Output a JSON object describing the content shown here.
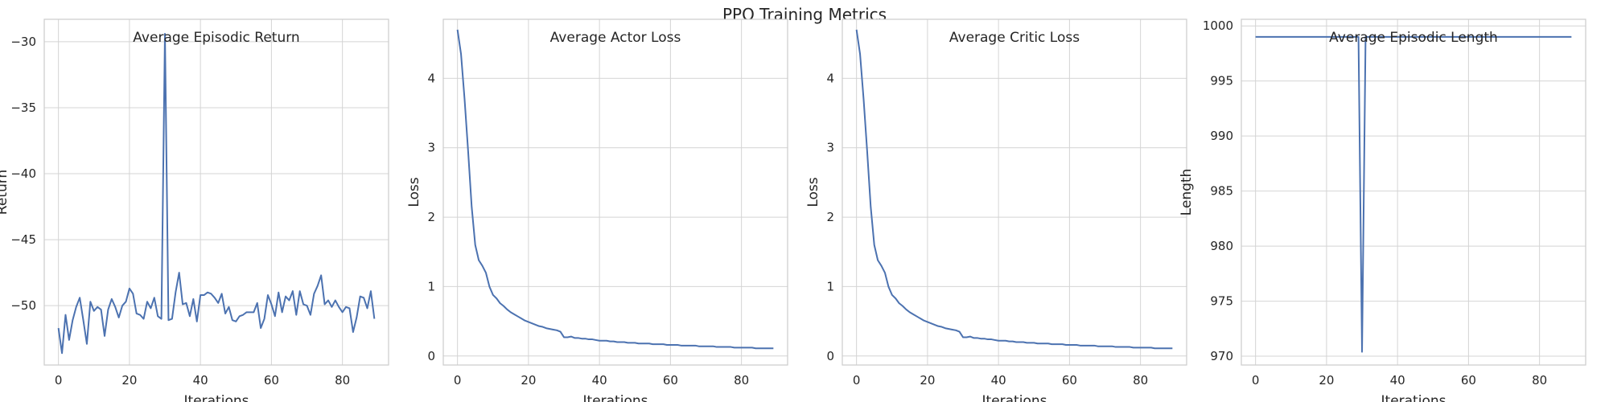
{
  "figure_title": "PPO Training Metrics",
  "chart_data": [
    {
      "type": "line",
      "title": "Average Episodic Return",
      "xlabel": "Iterations",
      "ylabel": "Return",
      "xlim": [
        -4,
        93
      ],
      "ylim": [
        -54.5,
        -28.3
      ],
      "xticks": [
        0,
        20,
        40,
        60,
        80
      ],
      "yticks": [
        -50,
        -45,
        -40,
        -35,
        -30
      ],
      "grid": true,
      "color": "#4c72b0",
      "x": [
        0,
        1,
        2,
        3,
        4,
        5,
        6,
        7,
        8,
        9,
        10,
        11,
        12,
        13,
        14,
        15,
        16,
        17,
        18,
        19,
        20,
        21,
        22,
        23,
        24,
        25,
        26,
        27,
        28,
        29,
        30,
        31,
        32,
        33,
        34,
        35,
        36,
        37,
        38,
        39,
        40,
        41,
        42,
        43,
        44,
        45,
        46,
        47,
        48,
        49,
        50,
        51,
        52,
        53,
        54,
        55,
        56,
        57,
        58,
        59,
        60,
        61,
        62,
        63,
        64,
        65,
        66,
        67,
        68,
        69,
        70,
        71,
        72,
        73,
        74,
        75,
        76,
        77,
        78,
        79,
        80,
        81,
        82,
        83,
        84,
        85,
        86,
        87,
        88,
        89
      ],
      "y": [
        -51.7,
        -53.6,
        -50.7,
        -52.6,
        -51.1,
        -50.1,
        -49.4,
        -51.1,
        -52.9,
        -49.7,
        -50.4,
        -50.1,
        -50.3,
        -52.3,
        -50.3,
        -49.5,
        -50.1,
        -50.9,
        -50.0,
        -49.7,
        -48.7,
        -49.1,
        -50.6,
        -50.7,
        -51.0,
        -49.7,
        -50.2,
        -49.4,
        -50.8,
        -51.0,
        -29.4,
        -51.1,
        -51.0,
        -49.0,
        -47.5,
        -49.9,
        -49.8,
        -50.8,
        -49.5,
        -51.2,
        -49.2,
        -49.2,
        -49.0,
        -49.1,
        -49.4,
        -49.8,
        -49.1,
        -50.6,
        -50.1,
        -51.1,
        -51.2,
        -50.8,
        -50.7,
        -50.5,
        -50.5,
        -50.5,
        -49.8,
        -51.7,
        -51.0,
        -49.2,
        -49.9,
        -50.8,
        -49.0,
        -50.5,
        -49.3,
        -49.6,
        -48.9,
        -50.7,
        -48.9,
        -49.9,
        -50.0,
        -50.7,
        -49.1,
        -48.5,
        -47.7,
        -49.9,
        -49.6,
        -50.1,
        -49.6,
        -50.1,
        -50.5,
        -50.1,
        -50.2,
        -52.0,
        -50.9,
        -49.3,
        -49.4,
        -50.2,
        -48.9,
        -51.0
      ]
    },
    {
      "type": "line",
      "title": "Average Actor Loss",
      "xlabel": "Iterations",
      "ylabel": "Loss",
      "xlim": [
        -4,
        93
      ],
      "ylim": [
        -0.13,
        4.85
      ],
      "xticks": [
        0,
        20,
        40,
        60,
        80
      ],
      "yticks": [
        0,
        1,
        2,
        3,
        4
      ],
      "grid": true,
      "color": "#4c72b0",
      "x": [
        0,
        1,
        2,
        3,
        4,
        5,
        6,
        7,
        8,
        9,
        10,
        11,
        12,
        13,
        14,
        15,
        16,
        17,
        18,
        19,
        20,
        21,
        22,
        23,
        24,
        25,
        26,
        27,
        28,
        29,
        30,
        31,
        32,
        33,
        34,
        35,
        36,
        37,
        38,
        39,
        40,
        41,
        42,
        43,
        44,
        45,
        46,
        47,
        48,
        49,
        50,
        51,
        52,
        53,
        54,
        55,
        56,
        57,
        58,
        59,
        60,
        61,
        62,
        63,
        64,
        65,
        66,
        67,
        68,
        69,
        70,
        71,
        72,
        73,
        74,
        75,
        76,
        77,
        78,
        79,
        80,
        81,
        82,
        83,
        84,
        85,
        86,
        87,
        88,
        89
      ],
      "y": [
        4.7,
        4.35,
        3.7,
        2.95,
        2.15,
        1.6,
        1.38,
        1.3,
        1.2,
        1.0,
        0.88,
        0.83,
        0.76,
        0.72,
        0.67,
        0.63,
        0.6,
        0.57,
        0.54,
        0.51,
        0.49,
        0.47,
        0.45,
        0.43,
        0.42,
        0.4,
        0.39,
        0.38,
        0.37,
        0.35,
        0.27,
        0.27,
        0.28,
        0.26,
        0.26,
        0.25,
        0.25,
        0.24,
        0.24,
        0.23,
        0.22,
        0.22,
        0.22,
        0.21,
        0.21,
        0.2,
        0.2,
        0.2,
        0.19,
        0.19,
        0.19,
        0.18,
        0.18,
        0.18,
        0.18,
        0.17,
        0.17,
        0.17,
        0.17,
        0.16,
        0.16,
        0.16,
        0.16,
        0.15,
        0.15,
        0.15,
        0.15,
        0.15,
        0.14,
        0.14,
        0.14,
        0.14,
        0.14,
        0.13,
        0.13,
        0.13,
        0.13,
        0.13,
        0.12,
        0.12,
        0.12,
        0.12,
        0.12,
        0.12,
        0.11,
        0.11,
        0.11,
        0.11,
        0.11,
        0.11
      ]
    },
    {
      "type": "line",
      "title": "Average Critic Loss",
      "xlabel": "Iterations",
      "ylabel": "Loss",
      "xlim": [
        -4,
        93
      ],
      "ylim": [
        -0.13,
        4.85
      ],
      "xticks": [
        0,
        20,
        40,
        60,
        80
      ],
      "yticks": [
        0,
        1,
        2,
        3,
        4
      ],
      "grid": true,
      "color": "#4c72b0",
      "x": [
        0,
        1,
        2,
        3,
        4,
        5,
        6,
        7,
        8,
        9,
        10,
        11,
        12,
        13,
        14,
        15,
        16,
        17,
        18,
        19,
        20,
        21,
        22,
        23,
        24,
        25,
        26,
        27,
        28,
        29,
        30,
        31,
        32,
        33,
        34,
        35,
        36,
        37,
        38,
        39,
        40,
        41,
        42,
        43,
        44,
        45,
        46,
        47,
        48,
        49,
        50,
        51,
        52,
        53,
        54,
        55,
        56,
        57,
        58,
        59,
        60,
        61,
        62,
        63,
        64,
        65,
        66,
        67,
        68,
        69,
        70,
        71,
        72,
        73,
        74,
        75,
        76,
        77,
        78,
        79,
        80,
        81,
        82,
        83,
        84,
        85,
        86,
        87,
        88,
        89
      ],
      "y": [
        4.7,
        4.35,
        3.7,
        2.95,
        2.15,
        1.6,
        1.38,
        1.3,
        1.2,
        1.0,
        0.88,
        0.83,
        0.76,
        0.72,
        0.67,
        0.63,
        0.6,
        0.57,
        0.54,
        0.51,
        0.49,
        0.47,
        0.45,
        0.43,
        0.42,
        0.4,
        0.39,
        0.38,
        0.37,
        0.35,
        0.27,
        0.27,
        0.28,
        0.26,
        0.26,
        0.25,
        0.25,
        0.24,
        0.24,
        0.23,
        0.22,
        0.22,
        0.22,
        0.21,
        0.21,
        0.2,
        0.2,
        0.2,
        0.19,
        0.19,
        0.19,
        0.18,
        0.18,
        0.18,
        0.18,
        0.17,
        0.17,
        0.17,
        0.17,
        0.16,
        0.16,
        0.16,
        0.16,
        0.15,
        0.15,
        0.15,
        0.15,
        0.15,
        0.14,
        0.14,
        0.14,
        0.14,
        0.14,
        0.13,
        0.13,
        0.13,
        0.13,
        0.13,
        0.12,
        0.12,
        0.12,
        0.12,
        0.12,
        0.12,
        0.11,
        0.11,
        0.11,
        0.11,
        0.11,
        0.11
      ]
    },
    {
      "type": "line",
      "title": "Average Episodic Length",
      "xlabel": "Iterations",
      "ylabel": "Length",
      "xlim": [
        -4,
        93
      ],
      "ylim": [
        969.2,
        1000.6
      ],
      "xticks": [
        0,
        20,
        40,
        60,
        80
      ],
      "yticks": [
        970,
        975,
        980,
        985,
        990,
        995,
        1000
      ],
      "grid": true,
      "color": "#4c72b0",
      "x": [
        0,
        29,
        30,
        31,
        89
      ],
      "y": [
        999,
        999,
        970.4,
        999,
        999
      ]
    }
  ]
}
